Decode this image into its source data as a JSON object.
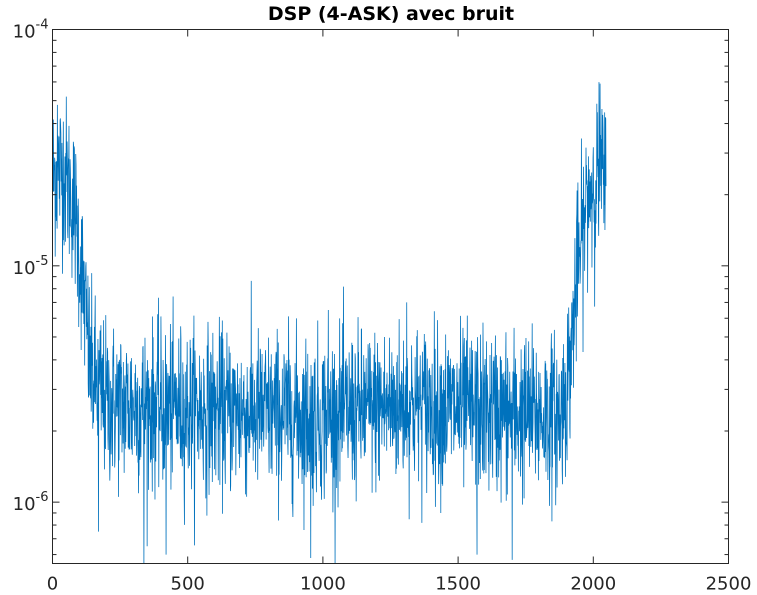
{
  "chart_data": {
    "type": "line",
    "title": "DSP (4-ASK) avec bruit",
    "xlabel": "",
    "ylabel": "",
    "xlim": [
      0,
      2500
    ],
    "ylim": [
      5.5e-07,
      0.0001
    ],
    "yscale": "log",
    "grid": false,
    "series_color": "#0072BD",
    "x_ticks": [
      {
        "value": 0,
        "label": "0"
      },
      {
        "value": 500,
        "label": "500"
      },
      {
        "value": 1000,
        "label": "1000"
      },
      {
        "value": 1500,
        "label": "1500"
      },
      {
        "value": 2000,
        "label": "2000"
      },
      {
        "value": 2500,
        "label": "2500"
      }
    ],
    "y_ticks": [
      {
        "value": 1e-06,
        "base": "10",
        "exp": "-6"
      },
      {
        "value": 1e-05,
        "base": "10",
        "exp": "-5"
      },
      {
        "value": 0.0001,
        "base": "10",
        "exp": "-4"
      }
    ],
    "x_step": 1,
    "n_points": 2048,
    "series_profile": {
      "description": "Noisy spectrum: high at both ends, flat noisy floor in the middle",
      "envelope": [
        [
          0,
          2.4e-05
        ],
        [
          40,
          2.6e-05
        ],
        [
          80,
          1.8e-05
        ],
        [
          110,
          9e-06
        ],
        [
          140,
          3.6e-06
        ],
        [
          200,
          2.6e-06
        ],
        [
          1000,
          2.3e-06
        ],
        [
          1300,
          2.6e-06
        ],
        [
          1600,
          2.4e-06
        ],
        [
          1880,
          2.3e-06
        ],
        [
          1910,
          3.5e-06
        ],
        [
          1940,
          9e-06
        ],
        [
          1980,
          2e-05
        ],
        [
          2020,
          2.5e-05
        ],
        [
          2047,
          2.2e-05
        ]
      ],
      "peaks": [
        [
          18,
          4.8e-05
        ],
        [
          2025,
          5.9e-05
        ],
        [
          1310,
          7e-06
        ],
        [
          1020,
          6.5e-06
        ]
      ],
      "troughs": [
        [
          170,
          7.5e-07
        ],
        [
          338,
          5.5e-07
        ],
        [
          420,
          6e-07
        ],
        [
          955,
          5.8e-07
        ],
        [
          1570,
          6e-07
        ],
        [
          1700,
          5.7e-07
        ]
      ]
    }
  }
}
